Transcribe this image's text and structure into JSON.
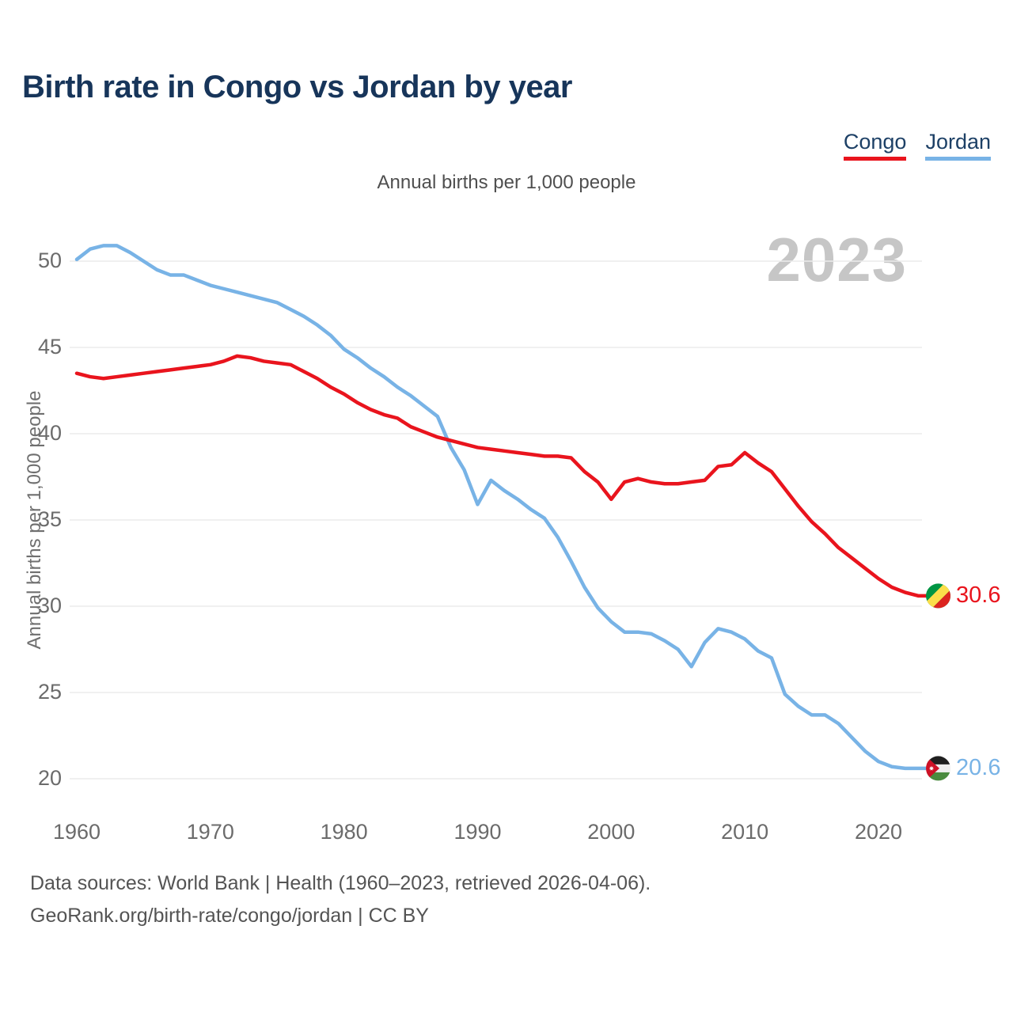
{
  "header": {
    "title": "Birth rate in Congo vs Jordan by year"
  },
  "legend": [
    {
      "label": "Congo",
      "color": "#e9141d"
    },
    {
      "label": "Jordan",
      "color": "#78b3e6"
    }
  ],
  "subtitle": "Annual births per 1,000 people",
  "watermark": "2023",
  "y_axis_title": "Annual births per 1,000 people",
  "chart_data": {
    "type": "line",
    "title": "Birth rate in Congo vs Jordan by year",
    "units": "Annual births per 1,000 people",
    "grid": true,
    "legend_position": "top-right",
    "xlim": [
      1960,
      2023
    ],
    "ylim": [
      20,
      50
    ],
    "xticks": [
      1960,
      1970,
      1980,
      1990,
      2000,
      2010,
      2020
    ],
    "yticks": [
      20,
      25,
      30,
      35,
      40,
      45,
      50
    ],
    "x": [
      1960,
      1961,
      1962,
      1963,
      1964,
      1965,
      1966,
      1967,
      1968,
      1969,
      1970,
      1971,
      1972,
      1973,
      1974,
      1975,
      1976,
      1977,
      1978,
      1979,
      1980,
      1981,
      1982,
      1983,
      1984,
      1985,
      1986,
      1987,
      1988,
      1989,
      1990,
      1991,
      1992,
      1993,
      1994,
      1995,
      1996,
      1997,
      1998,
      1999,
      2000,
      2001,
      2002,
      2003,
      2004,
      2005,
      2006,
      2007,
      2008,
      2009,
      2010,
      2011,
      2012,
      2013,
      2014,
      2015,
      2016,
      2017,
      2018,
      2019,
      2020,
      2021,
      2022,
      2023
    ],
    "series": [
      {
        "name": "Congo",
        "color": "#e9141d",
        "values": [
          43.5,
          43.3,
          43.2,
          43.3,
          43.4,
          43.5,
          43.6,
          43.7,
          43.8,
          43.9,
          44.0,
          44.2,
          44.5,
          44.4,
          44.2,
          44.1,
          44.0,
          43.6,
          43.2,
          42.7,
          42.3,
          41.8,
          41.4,
          41.1,
          40.9,
          40.4,
          40.1,
          39.8,
          39.6,
          39.4,
          39.2,
          39.1,
          39.0,
          38.9,
          38.8,
          38.7,
          38.7,
          38.6,
          37.8,
          37.2,
          36.2,
          37.2,
          37.4,
          37.2,
          37.1,
          37.1,
          37.2,
          37.3,
          38.1,
          38.2,
          38.9,
          38.3,
          37.8,
          36.8,
          35.8,
          34.9,
          34.2,
          33.4,
          32.8,
          32.2,
          31.6,
          31.1,
          30.8,
          30.6
        ]
      },
      {
        "name": "Jordan",
        "color": "#78b3e6",
        "values": [
          50.1,
          50.7,
          50.9,
          50.9,
          50.5,
          50.0,
          49.5,
          49.2,
          49.2,
          48.9,
          48.6,
          48.4,
          48.2,
          48.0,
          47.8,
          47.6,
          47.2,
          46.8,
          46.3,
          45.7,
          44.9,
          44.4,
          43.8,
          43.3,
          42.7,
          42.2,
          41.6,
          41.0,
          39.2,
          37.9,
          35.9,
          37.3,
          36.7,
          36.2,
          35.6,
          35.1,
          34.0,
          32.6,
          31.1,
          29.9,
          29.1,
          28.5,
          28.5,
          28.4,
          28.0,
          27.5,
          26.5,
          27.9,
          28.7,
          28.5,
          28.1,
          27.4,
          27.0,
          24.9,
          24.2,
          23.7,
          23.7,
          23.2,
          22.4,
          21.6,
          21.0,
          20.7,
          20.6,
          20.6
        ]
      }
    ]
  },
  "end_labels": [
    {
      "series": "Congo",
      "value": "30.6",
      "icon": "congo-flag-icon",
      "color": "#e9141d"
    },
    {
      "series": "Jordan",
      "value": "20.6",
      "icon": "jordan-flag-icon",
      "color": "#78b3e6"
    }
  ],
  "footer": {
    "line1": "Data sources: World Bank | Health (1960–2023, retrieved 2026-04-06).",
    "line2": "GeoRank.org/birth-rate/congo/jordan | CC BY"
  }
}
